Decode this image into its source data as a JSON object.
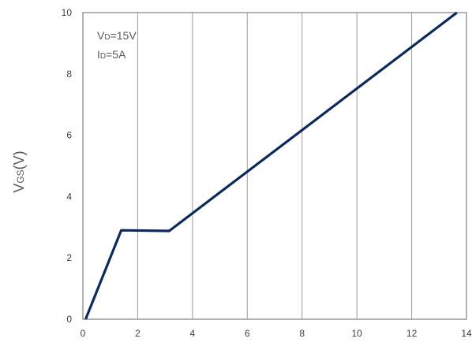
{
  "chart_data": {
    "type": "line",
    "title": "",
    "xlabel": "",
    "ylabel": {
      "main": "V",
      "sub": "GS",
      "unit": "(V)"
    },
    "xlim": [
      0,
      14
    ],
    "ylim": [
      0,
      10
    ],
    "xticks": [
      0,
      2,
      4,
      6,
      8,
      10,
      12,
      14
    ],
    "yticks": [
      0,
      2,
      4,
      6,
      8,
      10
    ],
    "grid": {
      "vertical": true,
      "horizontal": false
    },
    "annotations": [
      {
        "main": "V",
        "sub": "D",
        "rest": "=15V"
      },
      {
        "main": "I",
        "sub": "D",
        "rest": "=5A"
      }
    ],
    "series": [
      {
        "color": "#0b2a5c",
        "points": [
          [
            0.1,
            0.0
          ],
          [
            1.4,
            2.9
          ],
          [
            3.15,
            2.88
          ],
          [
            13.65,
            10.0
          ]
        ]
      }
    ]
  }
}
